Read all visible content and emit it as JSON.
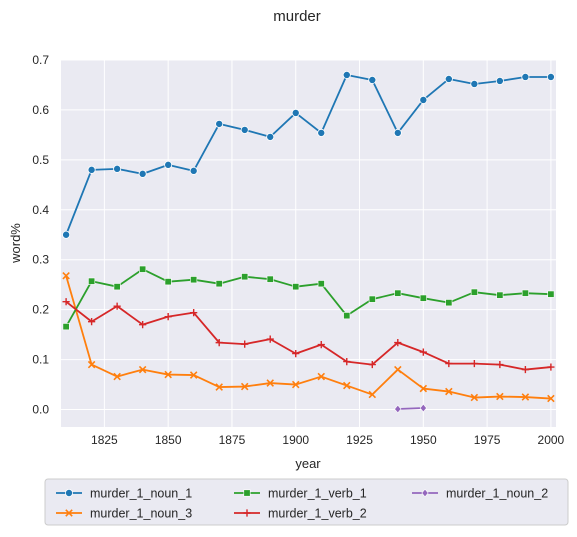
{
  "chart_data": {
    "type": "line",
    "title": "murder",
    "xlabel": "year",
    "ylabel": "word%",
    "xlim": [
      1808,
      2002
    ],
    "ylim": [
      -0.035,
      0.7
    ],
    "x_ticks": [
      1825,
      1850,
      1875,
      1900,
      1925,
      1950,
      1975,
      2000
    ],
    "y_ticks": [
      0.0,
      0.1,
      0.2,
      0.3,
      0.4,
      0.5,
      0.6,
      0.7
    ],
    "x_tick_labels": [
      "1825",
      "1850",
      "1875",
      "1900",
      "1925",
      "1950",
      "1975",
      "2000"
    ],
    "y_tick_labels": [
      "0.0",
      "0.1",
      "0.2",
      "0.3",
      "0.4",
      "0.5",
      "0.6",
      "0.7"
    ],
    "grid": true,
    "legend_position": "below",
    "series": [
      {
        "name": "murder_1_noun_1",
        "color": "#1f77b4",
        "marker": "circle",
        "x": [
          1810,
          1820,
          1830,
          1840,
          1850,
          1860,
          1870,
          1880,
          1890,
          1900,
          1910,
          1920,
          1930,
          1940,
          1950,
          1960,
          1970,
          1980,
          1990,
          2000
        ],
        "y": [
          0.35,
          0.48,
          0.482,
          0.472,
          0.49,
          0.478,
          0.572,
          0.56,
          0.546,
          0.594,
          0.554,
          0.67,
          0.66,
          0.554,
          0.62,
          0.662,
          0.652,
          0.658,
          0.666,
          0.666
        ]
      },
      {
        "name": "murder_1_noun_3",
        "color": "#ff7f0e",
        "marker": "x",
        "x": [
          1810,
          1820,
          1830,
          1840,
          1850,
          1860,
          1870,
          1880,
          1890,
          1900,
          1910,
          1920,
          1930,
          1940,
          1950,
          1960,
          1970,
          1980,
          1990,
          2000
        ],
        "y": [
          0.268,
          0.09,
          0.066,
          0.08,
          0.07,
          0.069,
          0.045,
          0.046,
          0.053,
          0.05,
          0.066,
          0.048,
          0.03,
          0.08,
          0.042,
          0.036,
          0.024,
          0.026,
          0.025,
          0.022
        ]
      },
      {
        "name": "murder_1_verb_1",
        "color": "#2ca02c",
        "marker": "square",
        "x": [
          1810,
          1820,
          1830,
          1840,
          1850,
          1860,
          1870,
          1880,
          1890,
          1900,
          1910,
          1920,
          1930,
          1940,
          1950,
          1960,
          1970,
          1980,
          1990,
          2000
        ],
        "y": [
          0.166,
          0.257,
          0.246,
          0.281,
          0.256,
          0.26,
          0.252,
          0.266,
          0.261,
          0.246,
          0.252,
          0.188,
          0.221,
          0.233,
          0.223,
          0.214,
          0.235,
          0.229,
          0.233,
          0.231
        ]
      },
      {
        "name": "murder_1_verb_2",
        "color": "#d62728",
        "marker": "plus",
        "x": [
          1810,
          1820,
          1830,
          1840,
          1850,
          1860,
          1870,
          1880,
          1890,
          1900,
          1910,
          1920,
          1930,
          1940,
          1950,
          1960,
          1970,
          1980,
          1990,
          2000
        ],
        "y": [
          0.216,
          0.176,
          0.207,
          0.17,
          0.186,
          0.194,
          0.134,
          0.131,
          0.141,
          0.112,
          0.13,
          0.096,
          0.09,
          0.134,
          0.115,
          0.092,
          0.092,
          0.09,
          0.08,
          0.085
        ]
      },
      {
        "name": "murder_1_noun_2",
        "color": "#9467bd",
        "marker": "diamond",
        "x": [
          1940,
          1950
        ],
        "y": [
          0.001,
          0.003
        ]
      }
    ]
  }
}
